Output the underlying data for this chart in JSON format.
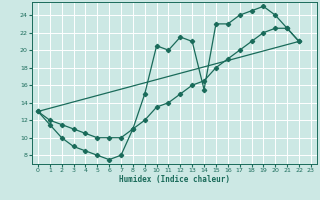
{
  "xlabel": "Humidex (Indice chaleur)",
  "xlim": [
    -0.5,
    23.5
  ],
  "ylim": [
    7.0,
    25.5
  ],
  "yticks": [
    8,
    10,
    12,
    14,
    16,
    18,
    20,
    22,
    24
  ],
  "xticks": [
    0,
    1,
    2,
    3,
    4,
    5,
    6,
    7,
    8,
    9,
    10,
    11,
    12,
    13,
    14,
    15,
    16,
    17,
    18,
    19,
    20,
    21,
    22,
    23
  ],
  "bg_color": "#cce8e4",
  "grid_color": "#ffffff",
  "line_color": "#1a6b5a",
  "line1_x": [
    0,
    1,
    2,
    3,
    4,
    5,
    6,
    7,
    8,
    9,
    10,
    11,
    12,
    13,
    14,
    15,
    16,
    17,
    18,
    19,
    20,
    21,
    22
  ],
  "line1_y": [
    13,
    11.5,
    10,
    9,
    8.5,
    8,
    7.5,
    8,
    11,
    15,
    20.5,
    20,
    21.5,
    21,
    15.5,
    23,
    23,
    24,
    24.5,
    25,
    24,
    22.5,
    21
  ],
  "line2_x": [
    0,
    1,
    2,
    3,
    4,
    5,
    6,
    7,
    8,
    9,
    10,
    11,
    12,
    13,
    14,
    15,
    16,
    17,
    18,
    19,
    20,
    21,
    22
  ],
  "line2_y": [
    13,
    12,
    11.5,
    11,
    10.5,
    10,
    10,
    10,
    11,
    12,
    13.5,
    14,
    15,
    16,
    16.5,
    18,
    19,
    20,
    21,
    22,
    22.5,
    22.5,
    21
  ],
  "line3_x": [
    0,
    22
  ],
  "line3_y": [
    13,
    21
  ]
}
